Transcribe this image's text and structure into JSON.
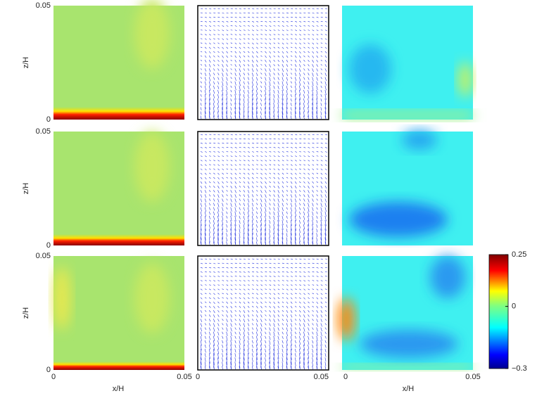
{
  "chart_data": {
    "type": "heatmap",
    "xlabel": "x/H",
    "ylabel": "z/H",
    "xlim": [
      0,
      0.05
    ],
    "ylim": [
      0,
      0.05
    ],
    "xticks": [
      0,
      0.05
    ],
    "yticks": [
      0,
      0.05
    ],
    "clim": [
      -0.3,
      0.25
    ],
    "cticks": [
      0.25,
      0,
      {
        "value": -0.3,
        "label": "−0.3"
      }
    ]
  }
}
